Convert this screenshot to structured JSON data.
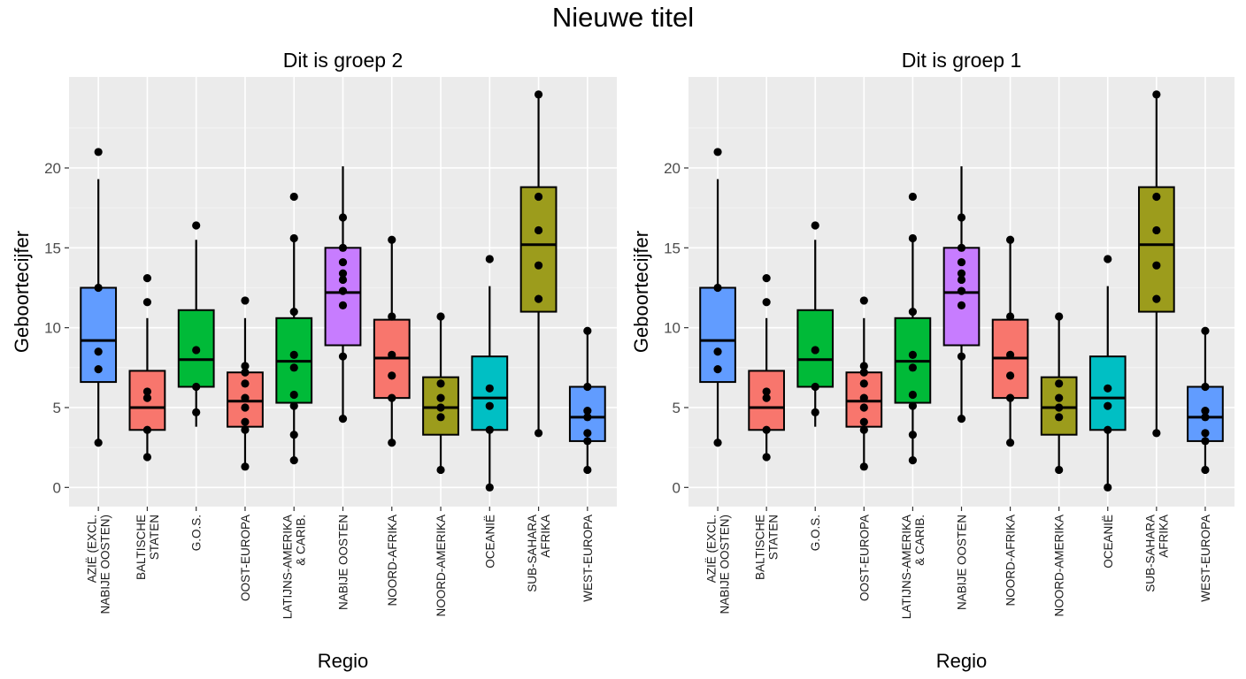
{
  "title": "Nieuwe titel",
  "chart_data": [
    {
      "type": "boxplot",
      "title": "Dit is groep 2",
      "xlabel": "Regio",
      "ylabel": "Geboortecijfer",
      "ylim": [
        -1.2,
        25.7
      ],
      "yticks": [
        0,
        5,
        10,
        15,
        20
      ],
      "grid": true,
      "categories": [
        {
          "label": [
            "AZIË (EXCL.",
            "NABIJE OOSTEN)"
          ],
          "color": "#619CFF",
          "whisker_low": 2.8,
          "q1": 6.6,
          "median": 9.2,
          "q3": 12.5,
          "whisker_high": 19.3,
          "points": [
            21.0,
            12.5,
            8.5,
            7.4,
            2.8
          ]
        },
        {
          "label": [
            "BALTISCHE",
            "STATEN"
          ],
          "color": "#F8766D",
          "whisker_low": 1.9,
          "q1": 3.6,
          "median": 5.0,
          "q3": 7.3,
          "whisker_high": 10.6,
          "points": [
            13.1,
            11.6,
            6.0,
            5.6,
            3.6,
            1.9
          ]
        },
        {
          "label": [
            "G.O.S."
          ],
          "color": "#00BA38",
          "whisker_low": 3.8,
          "q1": 6.3,
          "median": 8.0,
          "q3": 11.1,
          "whisker_high": 15.5,
          "points": [
            16.4,
            8.6,
            6.3,
            4.7
          ]
        },
        {
          "label": [
            "OOST-EUROPA"
          ],
          "color": "#F8766D",
          "whisker_low": 1.3,
          "q1": 3.8,
          "median": 5.4,
          "q3": 7.2,
          "whisker_high": 10.6,
          "points": [
            11.7,
            7.6,
            7.2,
            6.5,
            5.6,
            5.0,
            4.1,
            3.6,
            1.3
          ]
        },
        {
          "label": [
            "LATIJNS-AMERIKA",
            "& CARIB."
          ],
          "color": "#00BA38",
          "whisker_low": 1.7,
          "q1": 5.3,
          "median": 7.9,
          "q3": 10.6,
          "whisker_high": 15.6,
          "points": [
            18.2,
            15.6,
            11.0,
            8.3,
            7.5,
            5.8,
            5.1,
            3.3,
            1.7
          ]
        },
        {
          "label": [
            "NABIJE OOSTEN"
          ],
          "color": "#C77CFF",
          "whisker_low": 4.3,
          "q1": 8.9,
          "median": 12.2,
          "q3": 15.0,
          "whisker_high": 20.1,
          "points": [
            16.9,
            15.0,
            14.1,
            13.4,
            13.0,
            12.3,
            11.4,
            8.2,
            4.3
          ]
        },
        {
          "label": [
            "NOORD-AFRIKA"
          ],
          "color": "#F8766D",
          "whisker_low": 2.8,
          "q1": 5.6,
          "median": 8.1,
          "q3": 10.5,
          "whisker_high": 15.5,
          "points": [
            15.5,
            10.7,
            8.3,
            7.0,
            5.6,
            2.8
          ]
        },
        {
          "label": [
            "NOORD-AMERIKA"
          ],
          "color": "#9C9C1C",
          "whisker_low": 1.1,
          "q1": 3.3,
          "median": 5.0,
          "q3": 6.9,
          "whisker_high": 10.7,
          "points": [
            10.7,
            6.5,
            5.6,
            5.0,
            4.4,
            1.1
          ]
        },
        {
          "label": [
            "OCEANIË"
          ],
          "color": "#00BFC4",
          "whisker_low": 0.0,
          "q1": 3.6,
          "median": 5.6,
          "q3": 8.2,
          "whisker_high": 12.6,
          "points": [
            14.3,
            6.2,
            5.1,
            3.6,
            0.0
          ]
        },
        {
          "label": [
            "SUB-SAHARA",
            "AFRIKA"
          ],
          "color": "#9C9C1C",
          "whisker_low": 3.4,
          "q1": 11.0,
          "median": 15.2,
          "q3": 18.8,
          "whisker_high": 24.6,
          "points": [
            24.6,
            18.2,
            16.1,
            13.9,
            11.8,
            3.4
          ]
        },
        {
          "label": [
            "WEST-EUROPA"
          ],
          "color": "#619CFF",
          "whisker_low": 1.1,
          "q1": 2.9,
          "median": 4.4,
          "q3": 6.3,
          "whisker_high": 9.8,
          "points": [
            9.8,
            6.3,
            4.8,
            4.4,
            3.4,
            2.9,
            1.1
          ]
        }
      ]
    },
    {
      "type": "boxplot",
      "title": "Dit is groep 1",
      "xlabel": "Regio",
      "ylabel": "Geboortecijfer",
      "ylim": [
        -1.2,
        25.7
      ],
      "yticks": [
        0,
        5,
        10,
        15,
        20
      ],
      "grid": true,
      "categories": [
        {
          "label": [
            "AZIË (EXCL.",
            "NABIJE OOSTEN)"
          ],
          "color": "#619CFF",
          "whisker_low": 2.8,
          "q1": 6.6,
          "median": 9.2,
          "q3": 12.5,
          "whisker_high": 19.3,
          "points": [
            21.0,
            12.5,
            8.5,
            7.4,
            2.8
          ]
        },
        {
          "label": [
            "BALTISCHE",
            "STATEN"
          ],
          "color": "#F8766D",
          "whisker_low": 1.9,
          "q1": 3.6,
          "median": 5.0,
          "q3": 7.3,
          "whisker_high": 10.6,
          "points": [
            13.1,
            11.6,
            6.0,
            5.6,
            3.6,
            1.9
          ]
        },
        {
          "label": [
            "G.O.S."
          ],
          "color": "#00BA38",
          "whisker_low": 3.8,
          "q1": 6.3,
          "median": 8.0,
          "q3": 11.1,
          "whisker_high": 15.5,
          "points": [
            16.4,
            8.6,
            6.3,
            4.7
          ]
        },
        {
          "label": [
            "OOST-EUROPA"
          ],
          "color": "#F8766D",
          "whisker_low": 1.3,
          "q1": 3.8,
          "median": 5.4,
          "q3": 7.2,
          "whisker_high": 10.6,
          "points": [
            11.7,
            7.6,
            7.2,
            6.5,
            5.6,
            5.0,
            4.1,
            3.6,
            1.3
          ]
        },
        {
          "label": [
            "LATIJNS-AMERIKA",
            "& CARIB."
          ],
          "color": "#00BA38",
          "whisker_low": 1.7,
          "q1": 5.3,
          "median": 7.9,
          "q3": 10.6,
          "whisker_high": 15.6,
          "points": [
            18.2,
            15.6,
            11.0,
            8.3,
            7.5,
            5.8,
            5.1,
            3.3,
            1.7
          ]
        },
        {
          "label": [
            "NABIJE OOSTEN"
          ],
          "color": "#C77CFF",
          "whisker_low": 4.3,
          "q1": 8.9,
          "median": 12.2,
          "q3": 15.0,
          "whisker_high": 20.1,
          "points": [
            16.9,
            15.0,
            14.1,
            13.4,
            13.0,
            12.3,
            11.4,
            8.2,
            4.3
          ]
        },
        {
          "label": [
            "NOORD-AFRIKA"
          ],
          "color": "#F8766D",
          "whisker_low": 2.8,
          "q1": 5.6,
          "median": 8.1,
          "q3": 10.5,
          "whisker_high": 15.5,
          "points": [
            15.5,
            10.7,
            8.3,
            7.0,
            5.6,
            2.8
          ]
        },
        {
          "label": [
            "NOORD-AMERIKA"
          ],
          "color": "#9C9C1C",
          "whisker_low": 1.1,
          "q1": 3.3,
          "median": 5.0,
          "q3": 6.9,
          "whisker_high": 10.7,
          "points": [
            10.7,
            6.5,
            5.6,
            5.0,
            4.4,
            1.1
          ]
        },
        {
          "label": [
            "OCEANIË"
          ],
          "color": "#00BFC4",
          "whisker_low": 0.0,
          "q1": 3.6,
          "median": 5.6,
          "q3": 8.2,
          "whisker_high": 12.6,
          "points": [
            14.3,
            6.2,
            5.1,
            3.6,
            0.0
          ]
        },
        {
          "label": [
            "SUB-SAHARA",
            "AFRIKA"
          ],
          "color": "#9C9C1C",
          "whisker_low": 3.4,
          "q1": 11.0,
          "median": 15.2,
          "q3": 18.8,
          "whisker_high": 24.6,
          "points": [
            24.6,
            18.2,
            16.1,
            13.9,
            11.8,
            3.4
          ]
        },
        {
          "label": [
            "WEST-EUROPA"
          ],
          "color": "#619CFF",
          "whisker_low": 1.1,
          "q1": 2.9,
          "median": 4.4,
          "q3": 6.3,
          "whisker_high": 9.8,
          "points": [
            9.8,
            6.3,
            4.8,
            4.4,
            3.4,
            2.9,
            1.1
          ]
        }
      ]
    }
  ]
}
